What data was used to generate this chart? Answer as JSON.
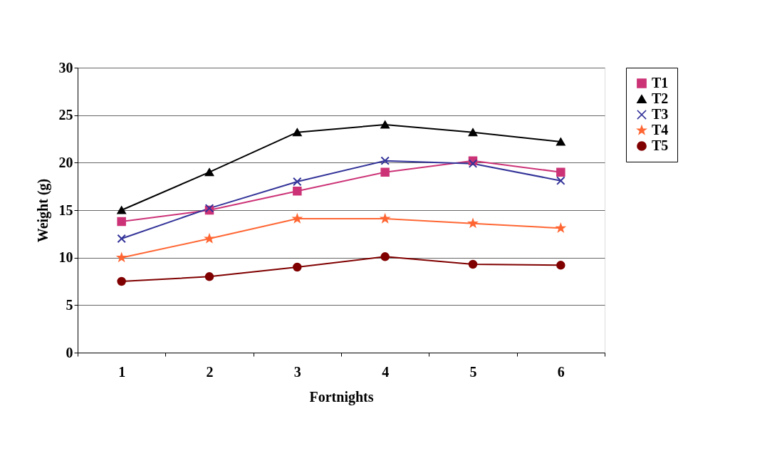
{
  "chart_data": {
    "type": "line",
    "xlabel": "Fortnights",
    "ylabel": "Weight (g)",
    "categories": [
      "1",
      "2",
      "3",
      "4",
      "5",
      "6"
    ],
    "ylim": [
      0,
      30
    ],
    "yticks": [
      0,
      5,
      10,
      15,
      20,
      25,
      30
    ],
    "grid": "y",
    "legend": "right",
    "series": [
      {
        "name": "T1",
        "color": "#cc3377",
        "marker": "square",
        "values": [
          13.8,
          15,
          17,
          19,
          20.2,
          19
        ]
      },
      {
        "name": "T2",
        "color": "#000000",
        "marker": "triangle",
        "values": [
          15,
          19,
          23.2,
          24,
          23.2,
          22.2
        ]
      },
      {
        "name": "T3",
        "color": "#333399",
        "marker": "cross",
        "values": [
          12,
          15.2,
          18,
          20.2,
          19.9,
          18.1
        ]
      },
      {
        "name": "T4",
        "color": "#ff6633",
        "marker": "star",
        "values": [
          10,
          12,
          14.1,
          14.1,
          13.6,
          13.1
        ]
      },
      {
        "name": "T5",
        "color": "#800000",
        "marker": "circle",
        "values": [
          7.5,
          8,
          9,
          10.1,
          9.3,
          9.2
        ]
      }
    ]
  }
}
